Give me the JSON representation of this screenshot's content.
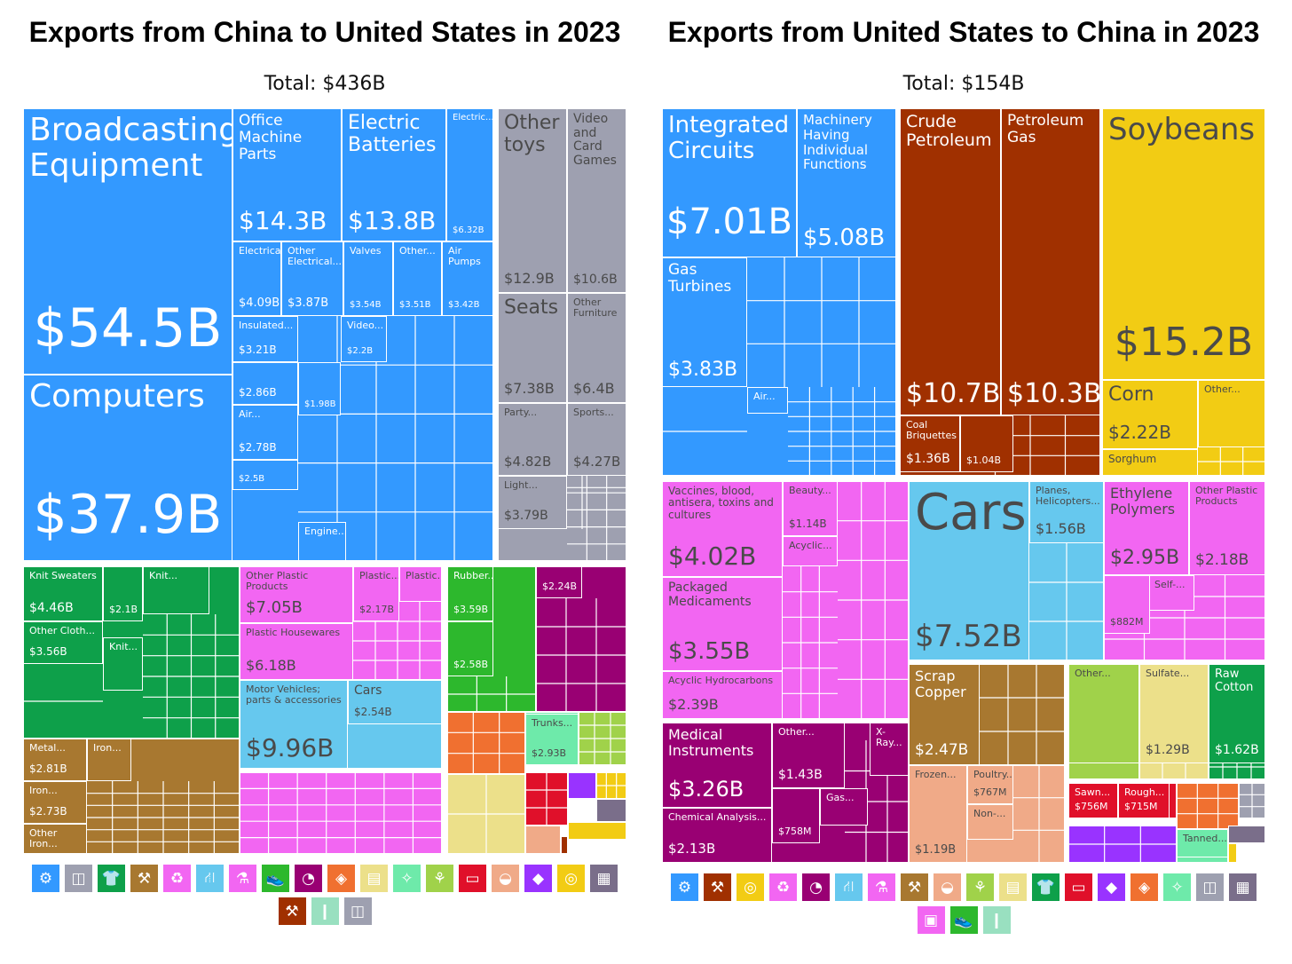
{
  "left": {
    "title": "Exports from China to United States in 2023",
    "total": "Total: $436B"
  },
  "right": {
    "title": "Exports from United States to China in 2023",
    "total": "Total: $154B"
  },
  "colors": {
    "machinery": "#3399ff",
    "misc": "#9ea0b0",
    "textiles": "#0ea04a",
    "metals": "#a87830",
    "chemicals": "#f266f2",
    "transport": "#66c8ee",
    "plastics": "#f266f2",
    "footwear": "#2db82d",
    "instruments": "#990073",
    "stone": "#f07030",
    "paper": "#ece08a",
    "hides": "#6eeaaa",
    "vegetable": "#a0d24a",
    "wood": "#e0102a",
    "animal": "#f0aa88",
    "precious": "#9933ff",
    "foodstuffs": "#f2cc14",
    "mineral": "#a03000",
    "weapons": "#99e0c0",
    "art": "#7a6e8a"
  },
  "chart_data": [
    {
      "type": "treemap",
      "title": "Exports from China to United States in 2023",
      "total": "Total: $436B",
      "items": [
        {
          "sector": "machinery",
          "label": "Broadcasting Equipment",
          "value": "$54.5B"
        },
        {
          "sector": "machinery",
          "label": "Computers",
          "value": "$37.9B"
        },
        {
          "sector": "machinery",
          "label": "Office Machine Parts",
          "value": "$14.3B"
        },
        {
          "sector": "machinery",
          "label": "Electric Batteries",
          "value": "$13.8B"
        },
        {
          "sector": "machinery",
          "label": "Electric...",
          "value": "$6.32B"
        },
        {
          "sector": "machinery",
          "label": "Electrical...",
          "value": "$4.09B"
        },
        {
          "sector": "machinery",
          "label": "Other Electrical...",
          "value": "$3.87B"
        },
        {
          "sector": "machinery",
          "label": "Valves",
          "value": "$3.54B"
        },
        {
          "sector": "machinery",
          "label": "Other...",
          "value": "$3.51B"
        },
        {
          "sector": "machinery",
          "label": "Air Pumps",
          "value": "$3.42B"
        },
        {
          "sector": "machinery",
          "label": "Insulated...",
          "value": "$3.21B"
        },
        {
          "sector": "machinery",
          "label": "Video...",
          "value": "$2.2B"
        },
        {
          "sector": "machinery",
          "label": "",
          "value": "$2.86B"
        },
        {
          "sector": "machinery",
          "label": "",
          "value": "$1.98B"
        },
        {
          "sector": "machinery",
          "label": "Air...",
          "value": "$2.78B"
        },
        {
          "sector": "machinery",
          "label": "",
          "value": "$2.5B"
        },
        {
          "sector": "machinery",
          "label": "Engine...",
          "value": ""
        },
        {
          "sector": "misc",
          "label": "Other toys",
          "value": "$12.9B"
        },
        {
          "sector": "misc",
          "label": "Video and Card Games",
          "value": "$10.6B"
        },
        {
          "sector": "misc",
          "label": "Seats",
          "value": "$7.38B"
        },
        {
          "sector": "misc",
          "label": "Other Furniture",
          "value": "$6.4B"
        },
        {
          "sector": "misc",
          "label": "Party...",
          "value": "$4.82B"
        },
        {
          "sector": "misc",
          "label": "Sports...",
          "value": "$4.27B"
        },
        {
          "sector": "misc",
          "label": "Light...",
          "value": "$3.79B"
        },
        {
          "sector": "textiles",
          "label": "Knit Sweaters",
          "value": "$4.46B"
        },
        {
          "sector": "textiles",
          "label": "",
          "value": "$2.1B"
        },
        {
          "sector": "textiles",
          "label": "Knit...",
          "value": ""
        },
        {
          "sector": "textiles",
          "label": "Other Cloth...",
          "value": "$3.56B"
        },
        {
          "sector": "textiles",
          "label": "Knit...",
          "value": ""
        },
        {
          "sector": "metals",
          "label": "Metal...",
          "value": "$2.81B"
        },
        {
          "sector": "metals",
          "label": "Iron...",
          "value": ""
        },
        {
          "sector": "metals",
          "label": "Iron...",
          "value": "$2.73B"
        },
        {
          "sector": "metals",
          "label": "Other Iron...",
          "value": ""
        },
        {
          "sector": "plastics",
          "label": "Other Plastic Products",
          "value": "$7.05B"
        },
        {
          "sector": "plastics",
          "label": "Plastic...",
          "value": "$2.17B"
        },
        {
          "sector": "plastics",
          "label": "Plastic...",
          "value": ""
        },
        {
          "sector": "plastics",
          "label": "Plastic Housewares",
          "value": "$6.18B"
        },
        {
          "sector": "transport",
          "label": "Motor Vehicles; parts & accessories",
          "value": "$9.96B"
        },
        {
          "sector": "transport",
          "label": "Cars",
          "value": "$2.54B"
        },
        {
          "sector": "footwear",
          "label": "Rubber...",
          "value": "$3.59B"
        },
        {
          "sector": "footwear",
          "label": "",
          "value": "$2.58B"
        },
        {
          "sector": "instruments",
          "label": "",
          "value": "$2.24B"
        },
        {
          "sector": "hides",
          "label": "Trunks...",
          "value": "$2.93B"
        }
      ],
      "legend": [
        "machinery",
        "misc",
        "textiles",
        "metals",
        "chemicals",
        "transport",
        "plastics",
        "footwear",
        "instruments",
        "stone",
        "paper",
        "hides",
        "vegetable",
        "wood",
        "animal",
        "precious",
        "foodstuffs",
        "art",
        "mineral",
        "weapons",
        "misc2"
      ]
    },
    {
      "type": "treemap",
      "title": "Exports from United States to China in 2023",
      "total": "Total: $154B",
      "items": [
        {
          "sector": "machinery",
          "label": "Integrated Circuits",
          "value": "$7.01B"
        },
        {
          "sector": "machinery",
          "label": "Machinery Having Individual Functions",
          "value": "$5.08B"
        },
        {
          "sector": "machinery",
          "label": "Gas Turbines",
          "value": "$3.83B"
        },
        {
          "sector": "machinery",
          "label": "Air...",
          "value": ""
        },
        {
          "sector": "mineral",
          "label": "Crude Petroleum",
          "value": "$10.7B"
        },
        {
          "sector": "mineral",
          "label": "Petroleum Gas",
          "value": "$10.3B"
        },
        {
          "sector": "mineral",
          "label": "Coal Briquettes",
          "value": "$1.36B"
        },
        {
          "sector": "mineral",
          "label": "",
          "value": "$1.04B"
        },
        {
          "sector": "foodstuffs",
          "label": "Soybeans",
          "value": "$15.2B"
        },
        {
          "sector": "foodstuffs",
          "label": "Corn",
          "value": "$2.22B"
        },
        {
          "sector": "foodstuffs",
          "label": "Other...",
          "value": ""
        },
        {
          "sector": "foodstuffs",
          "label": "Sorghum",
          "value": ""
        },
        {
          "sector": "chemicals",
          "label": "Vaccines, blood, antisera, toxins and cultures",
          "value": "$4.02B"
        },
        {
          "sector": "chemicals",
          "label": "Beauty...",
          "value": "$1.14B"
        },
        {
          "sector": "chemicals",
          "label": "Acyclic...",
          "value": ""
        },
        {
          "sector": "chemicals",
          "label": "Packaged Medicaments",
          "value": "$3.55B"
        },
        {
          "sector": "chemicals",
          "label": "Acyclic Hydrocarbons",
          "value": "$2.39B"
        },
        {
          "sector": "transport",
          "label": "Cars",
          "value": "$7.52B"
        },
        {
          "sector": "transport",
          "label": "Planes, Helicopters...",
          "value": "$1.56B"
        },
        {
          "sector": "plastics",
          "label": "Ethylene Polymers",
          "value": "$2.95B"
        },
        {
          "sector": "plastics",
          "label": "Other Plastic Products",
          "value": "$2.18B"
        },
        {
          "sector": "plastics",
          "label": "Self-...",
          "value": ""
        },
        {
          "sector": "plastics",
          "label": "",
          "value": "$882M"
        },
        {
          "sector": "instruments",
          "label": "Medical Instruments",
          "value": "$3.26B"
        },
        {
          "sector": "instruments",
          "label": "Other...",
          "value": "$1.43B"
        },
        {
          "sector": "instruments",
          "label": "X-Ray...",
          "value": ""
        },
        {
          "sector": "instruments",
          "label": "Chemical Analysis...",
          "value": "$2.13B"
        },
        {
          "sector": "instruments",
          "label": "",
          "value": "$758M"
        },
        {
          "sector": "instruments",
          "label": "Gas...",
          "value": ""
        },
        {
          "sector": "metals",
          "label": "Scrap Copper",
          "value": "$2.47B"
        },
        {
          "sector": "animal",
          "label": "Frozen...",
          "value": "$1.19B"
        },
        {
          "sector": "animal",
          "label": "Poultry...",
          "value": "$767M"
        },
        {
          "sector": "animal",
          "label": "Non-...",
          "value": ""
        },
        {
          "sector": "vegetable",
          "label": "Other...",
          "value": ""
        },
        {
          "sector": "paper",
          "label": "Sulfate...",
          "value": "$1.29B"
        },
        {
          "sector": "textiles",
          "label": "Raw Cotton",
          "value": "$1.62B"
        },
        {
          "sector": "wood",
          "label": "Sawn...",
          "value": "$756M"
        },
        {
          "sector": "wood",
          "label": "Rough...",
          "value": "$715M"
        },
        {
          "sector": "hides",
          "label": "Tanned...",
          "value": ""
        }
      ],
      "legend": [
        "machinery",
        "mineral",
        "foodstuffs",
        "chemicals",
        "instruments",
        "transport",
        "plastics",
        "metals",
        "animal",
        "vegetable",
        "paper",
        "textiles",
        "wood",
        "precious",
        "stone",
        "hides",
        "misc",
        "art",
        "plastics2",
        "footwear",
        "weapons"
      ]
    }
  ]
}
